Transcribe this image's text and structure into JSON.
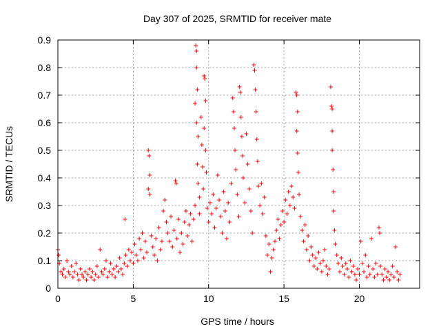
{
  "chart_data": {
    "type": "scatter",
    "title": "Day 307 of 2025, SRMTID for receiver mate",
    "xlabel": "GPS time / hours",
    "ylabel": "SRMTID / TECUs",
    "xlim": [
      0,
      24
    ],
    "ylim": [
      0,
      0.9
    ],
    "x_ticks": [
      0,
      5,
      10,
      15,
      20
    ],
    "x_tick_labels": [
      "0",
      "5",
      "10",
      "15",
      "20"
    ],
    "y_ticks": [
      0,
      0.1,
      0.2,
      0.3,
      0.4,
      0.5,
      0.6,
      0.7,
      0.8,
      0.9
    ],
    "y_tick_labels": [
      "0",
      "0.1",
      "0.2",
      "0.3",
      "0.4",
      "0.5",
      "0.6",
      "0.7",
      "0.8",
      "0.9"
    ],
    "grid": true,
    "marker": "+",
    "marker_color": "#ff0000",
    "series": [
      {
        "name": "SRMTID",
        "points": [
          [
            0.0,
            0.14
          ],
          [
            0.05,
            0.12
          ],
          [
            0.1,
            0.09
          ],
          [
            0.2,
            0.06
          ],
          [
            0.3,
            0.05
          ],
          [
            0.4,
            0.07
          ],
          [
            0.5,
            0.04
          ],
          [
            0.6,
            0.1
          ],
          [
            0.7,
            0.06
          ],
          [
            0.8,
            0.05
          ],
          [
            0.9,
            0.08
          ],
          [
            1.0,
            0.04
          ],
          [
            1.1,
            0.06
          ],
          [
            1.2,
            0.09
          ],
          [
            1.3,
            0.05
          ],
          [
            1.4,
            0.03
          ],
          [
            1.5,
            0.07
          ],
          [
            1.6,
            0.05
          ],
          [
            1.7,
            0.04
          ],
          [
            1.8,
            0.06
          ],
          [
            1.9,
            0.03
          ],
          [
            2.0,
            0.05
          ],
          [
            2.1,
            0.07
          ],
          [
            2.2,
            0.04
          ],
          [
            2.3,
            0.06
          ],
          [
            2.4,
            0.03
          ],
          [
            2.5,
            0.05
          ],
          [
            2.6,
            0.08
          ],
          [
            2.7,
            0.04
          ],
          [
            2.8,
            0.14
          ],
          [
            2.9,
            0.06
          ],
          [
            3.0,
            0.05
          ],
          [
            3.1,
            0.07
          ],
          [
            3.2,
            0.1
          ],
          [
            3.3,
            0.04
          ],
          [
            3.4,
            0.06
          ],
          [
            3.5,
            0.09
          ],
          [
            3.6,
            0.05
          ],
          [
            3.7,
            0.07
          ],
          [
            3.8,
            0.04
          ],
          [
            3.9,
            0.08
          ],
          [
            4.0,
            0.06
          ],
          [
            4.1,
            0.11
          ],
          [
            4.2,
            0.07
          ],
          [
            4.3,
            0.05
          ],
          [
            4.4,
            0.09
          ],
          [
            4.5,
            0.12
          ],
          [
            4.6,
            0.08
          ],
          [
            4.7,
            0.14
          ],
          [
            4.8,
            0.1
          ],
          [
            4.45,
            0.25
          ],
          [
            4.9,
            0.13
          ],
          [
            5.0,
            0.09
          ],
          [
            5.1,
            0.16
          ],
          [
            5.2,
            0.12
          ],
          [
            5.3,
            0.1
          ],
          [
            5.4,
            0.18
          ],
          [
            5.5,
            0.14
          ],
          [
            5.6,
            0.2
          ],
          [
            5.7,
            0.11
          ],
          [
            5.8,
            0.17
          ],
          [
            5.9,
            0.13
          ],
          [
            6.0,
            0.5
          ],
          [
            6.05,
            0.48
          ],
          [
            6.1,
            0.41
          ],
          [
            6.0,
            0.36
          ],
          [
            6.1,
            0.34
          ],
          [
            6.2,
            0.19
          ],
          [
            6.3,
            0.15
          ],
          [
            6.4,
            0.12
          ],
          [
            6.5,
            0.18
          ],
          [
            6.6,
            0.1
          ],
          [
            6.7,
            0.22
          ],
          [
            6.8,
            0.14
          ],
          [
            6.9,
            0.17
          ],
          [
            7.0,
            0.28
          ],
          [
            7.1,
            0.32
          ],
          [
            7.2,
            0.24
          ],
          [
            7.3,
            0.2
          ],
          [
            7.4,
            0.17
          ],
          [
            7.5,
            0.26
          ],
          [
            7.6,
            0.15
          ],
          [
            7.7,
            0.21
          ],
          [
            7.8,
            0.39
          ],
          [
            7.85,
            0.38
          ],
          [
            7.9,
            0.18
          ],
          [
            8.0,
            0.25
          ],
          [
            8.1,
            0.13
          ],
          [
            8.2,
            0.2
          ],
          [
            8.3,
            0.16
          ],
          [
            8.4,
            0.24
          ],
          [
            8.5,
            0.28
          ],
          [
            8.6,
            0.19
          ],
          [
            8.7,
            0.23
          ],
          [
            8.8,
            0.27
          ],
          [
            8.9,
            0.17
          ],
          [
            9.0,
            0.25
          ],
          [
            9.1,
            0.3
          ],
          [
            9.15,
            0.88
          ],
          [
            9.2,
            0.86
          ],
          [
            9.2,
            0.8
          ],
          [
            9.25,
            0.72
          ],
          [
            9.1,
            0.67
          ],
          [
            9.2,
            0.6
          ],
          [
            9.3,
            0.55
          ],
          [
            9.25,
            0.45
          ],
          [
            9.3,
            0.38
          ],
          [
            9.4,
            0.33
          ],
          [
            9.4,
            0.27
          ],
          [
            9.5,
            0.62
          ],
          [
            9.55,
            0.52
          ],
          [
            9.6,
            0.44
          ],
          [
            9.65,
            0.36
          ],
          [
            9.7,
            0.77
          ],
          [
            9.75,
            0.76
          ],
          [
            9.8,
            0.68
          ],
          [
            9.7,
            0.58
          ],
          [
            9.8,
            0.5
          ],
          [
            9.85,
            0.42
          ],
          [
            9.9,
            0.29
          ],
          [
            10.0,
            0.24
          ],
          [
            10.1,
            0.31
          ],
          [
            10.2,
            0.27
          ],
          [
            10.3,
            0.34
          ],
          [
            10.4,
            0.22
          ],
          [
            10.5,
            0.29
          ],
          [
            10.6,
            0.41
          ],
          [
            10.7,
            0.32
          ],
          [
            10.8,
            0.26
          ],
          [
            10.9,
            0.2
          ],
          [
            11.0,
            0.35
          ],
          [
            11.1,
            0.28
          ],
          [
            11.2,
            0.18
          ],
          [
            11.3,
            0.31
          ],
          [
            11.4,
            0.24
          ],
          [
            11.5,
            0.38
          ],
          [
            11.6,
            0.69
          ],
          [
            11.65,
            0.64
          ],
          [
            11.7,
            0.58
          ],
          [
            11.75,
            0.5
          ],
          [
            11.8,
            0.43
          ],
          [
            11.9,
            0.34
          ],
          [
            12.0,
            0.26
          ],
          [
            12.05,
            0.73
          ],
          [
            12.1,
            0.71
          ],
          [
            12.15,
            0.62
          ],
          [
            12.2,
            0.55
          ],
          [
            12.25,
            0.48
          ],
          [
            12.3,
            0.4
          ],
          [
            12.4,
            0.31
          ],
          [
            12.5,
            0.56
          ],
          [
            12.6,
            0.45
          ],
          [
            12.7,
            0.36
          ],
          [
            12.8,
            0.28
          ],
          [
            12.9,
            0.2
          ],
          [
            13.0,
            0.81
          ],
          [
            13.05,
            0.79
          ],
          [
            13.1,
            0.72
          ],
          [
            13.15,
            0.64
          ],
          [
            13.2,
            0.54
          ],
          [
            13.25,
            0.46
          ],
          [
            13.3,
            0.37
          ],
          [
            13.4,
            0.3
          ],
          [
            13.5,
            0.38
          ],
          [
            13.6,
            0.27
          ],
          [
            13.7,
            0.33
          ],
          [
            13.8,
            0.19
          ],
          [
            13.9,
            0.12
          ],
          [
            14.0,
            0.16
          ],
          [
            14.1,
            0.06
          ],
          [
            14.2,
            0.11
          ],
          [
            14.3,
            0.14
          ],
          [
            14.4,
            0.17
          ],
          [
            14.5,
            0.21
          ],
          [
            14.6,
            0.25
          ],
          [
            14.7,
            0.18
          ],
          [
            14.8,
            0.23
          ],
          [
            14.9,
            0.28
          ],
          [
            15.0,
            0.24
          ],
          [
            15.1,
            0.32
          ],
          [
            15.2,
            0.27
          ],
          [
            15.3,
            0.35
          ],
          [
            15.4,
            0.3
          ],
          [
            15.5,
            0.37
          ],
          [
            15.6,
            0.33
          ],
          [
            15.7,
            0.29
          ],
          [
            15.8,
            0.71
          ],
          [
            15.85,
            0.7
          ],
          [
            15.9,
            0.64
          ],
          [
            15.85,
            0.57
          ],
          [
            15.9,
            0.49
          ],
          [
            15.95,
            0.42
          ],
          [
            16.0,
            0.34
          ],
          [
            16.1,
            0.26
          ],
          [
            16.2,
            0.21
          ],
          [
            16.3,
            0.17
          ],
          [
            16.4,
            0.23
          ],
          [
            16.5,
            0.14
          ],
          [
            16.6,
            0.19
          ],
          [
            16.7,
            0.1
          ],
          [
            16.8,
            0.15
          ],
          [
            16.9,
            0.12
          ],
          [
            17.0,
            0.08
          ],
          [
            17.1,
            0.11
          ],
          [
            17.2,
            0.07
          ],
          [
            17.3,
            0.13
          ],
          [
            17.4,
            0.09
          ],
          [
            17.5,
            0.06
          ],
          [
            17.6,
            0.1
          ],
          [
            17.7,
            0.14
          ],
          [
            17.8,
            0.08
          ],
          [
            17.9,
            0.05
          ],
          [
            18.0,
            0.07
          ],
          [
            18.1,
            0.73
          ],
          [
            18.15,
            0.66
          ],
          [
            18.2,
            0.65
          ],
          [
            18.2,
            0.57
          ],
          [
            18.2,
            0.5
          ],
          [
            18.25,
            0.43
          ],
          [
            18.3,
            0.35
          ],
          [
            18.3,
            0.28
          ],
          [
            18.35,
            0.21
          ],
          [
            18.4,
            0.16
          ],
          [
            18.5,
            0.12
          ],
          [
            18.6,
            0.09
          ],
          [
            18.7,
            0.06
          ],
          [
            18.8,
            0.11
          ],
          [
            18.9,
            0.08
          ],
          [
            19.0,
            0.05
          ],
          [
            19.1,
            0.09
          ],
          [
            19.2,
            0.07
          ],
          [
            19.3,
            0.04
          ],
          [
            19.4,
            0.1
          ],
          [
            19.5,
            0.06
          ],
          [
            19.6,
            0.08
          ],
          [
            19.7,
            0.05
          ],
          [
            19.8,
            0.03
          ],
          [
            19.9,
            0.07
          ],
          [
            20.0,
            0.05
          ],
          [
            20.1,
            0.17
          ],
          [
            20.2,
            0.09
          ],
          [
            20.3,
            0.06
          ],
          [
            20.4,
            0.12
          ],
          [
            20.5,
            0.04
          ],
          [
            20.6,
            0.08
          ],
          [
            20.7,
            0.05
          ],
          [
            20.8,
            0.18
          ],
          [
            20.9,
            0.07
          ],
          [
            21.0,
            0.04
          ],
          [
            21.1,
            0.09
          ],
          [
            21.2,
            0.05
          ],
          [
            21.3,
            0.22
          ],
          [
            21.35,
            0.2
          ],
          [
            21.4,
            0.08
          ],
          [
            21.5,
            0.05
          ],
          [
            21.6,
            0.03
          ],
          [
            21.7,
            0.07
          ],
          [
            21.8,
            0.04
          ],
          [
            21.9,
            0.06
          ],
          [
            22.0,
            0.03
          ],
          [
            22.1,
            0.05
          ],
          [
            22.2,
            0.08
          ],
          [
            22.3,
            0.04
          ],
          [
            22.4,
            0.15
          ],
          [
            22.5,
            0.06
          ],
          [
            22.6,
            0.03
          ],
          [
            22.7,
            0.05
          ]
        ]
      }
    ]
  }
}
